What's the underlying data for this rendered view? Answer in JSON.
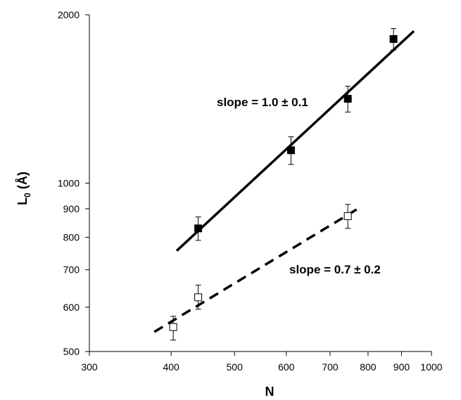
{
  "chart_data": {
    "type": "scatter",
    "title": "",
    "xlabel": "N",
    "ylabel_main": "L",
    "ylabel_sub": "0",
    "ylabel_tail": " (Å)",
    "xscale": "log",
    "yscale": "log",
    "xlim": [
      300,
      1000
    ],
    "ylim": [
      500,
      2000
    ],
    "x_ticks": [
      300,
      400,
      500,
      600,
      700,
      800,
      900,
      1000
    ],
    "x_tick_labels": [
      "300",
      "400",
      "500",
      "600",
      "700",
      "800",
      "900",
      "1000"
    ],
    "y_ticks": [
      500,
      600,
      700,
      800,
      900,
      1000,
      2000
    ],
    "y_tick_labels": [
      "500",
      "600",
      "700",
      "800",
      "900",
      "1000",
      "2000"
    ],
    "grid": false,
    "series": [
      {
        "marker": "filled-square",
        "color": "#000000",
        "points": [
          {
            "x": 440,
            "y": 830,
            "err_low": 790,
            "err_high": 870
          },
          {
            "x": 610,
            "y": 1145,
            "err_low": 1080,
            "err_high": 1210
          },
          {
            "x": 745,
            "y": 1415,
            "err_low": 1340,
            "err_high": 1490
          },
          {
            "x": 875,
            "y": 1810,
            "err_low": 1730,
            "err_high": 1890
          }
        ],
        "fit": {
          "style": "solid",
          "x": [
            408,
            940
          ],
          "y": [
            757,
            1870
          ]
        }
      },
      {
        "marker": "open-square",
        "color": "#000000",
        "points": [
          {
            "x": 403,
            "y": 553,
            "err_low": 524,
            "err_high": 578
          },
          {
            "x": 440,
            "y": 625,
            "err_low": 595,
            "err_high": 657
          },
          {
            "x": 745,
            "y": 873,
            "err_low": 830,
            "err_high": 916
          }
        ],
        "fit": {
          "style": "dashed",
          "x": [
            377,
            778
          ],
          "y": [
            542,
            905
          ]
        }
      }
    ],
    "annotations": [
      {
        "id": "upper",
        "text": "slope = 1.0 ± 0.1"
      },
      {
        "id": "lower",
        "text": "slope = 0.7 ± 0.2"
      }
    ]
  }
}
